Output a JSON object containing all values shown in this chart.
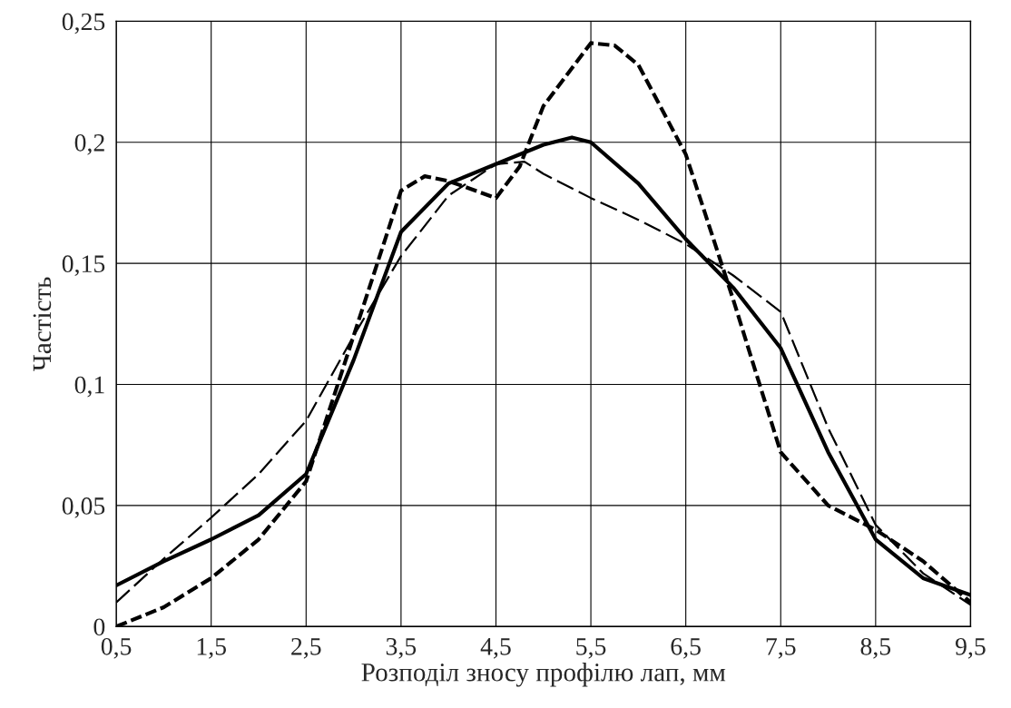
{
  "chart_data": {
    "type": "line",
    "xlabel": "Розподіл зносу профілю лап, мм",
    "ylabel": "Частість",
    "xlim": [
      0.5,
      9.5
    ],
    "ylim": [
      0,
      0.25
    ],
    "xticks": [
      {
        "value": 0.5,
        "label": "0,5"
      },
      {
        "value": 1.5,
        "label": "1,5"
      },
      {
        "value": 2.5,
        "label": "2,5"
      },
      {
        "value": 3.5,
        "label": "3,5"
      },
      {
        "value": 4.5,
        "label": "4,5"
      },
      {
        "value": 5.5,
        "label": "5,5"
      },
      {
        "value": 6.5,
        "label": "6,5"
      },
      {
        "value": 7.5,
        "label": "7,5"
      },
      {
        "value": 8.5,
        "label": "8,5"
      },
      {
        "value": 9.5,
        "label": "9,5"
      }
    ],
    "yticks": [
      0,
      {
        "value": 0.05,
        "label": "0,05"
      },
      {
        "value": 0.1,
        "label": "0,1"
      },
      {
        "value": 0.15,
        "label": "0,15"
      },
      {
        "value": 0.2,
        "label": "0,2"
      },
      {
        "value": 0.25,
        "label": "0,25"
      }
    ],
    "grid": true,
    "marker": "none",
    "series": [
      {
        "color": "#000000",
        "line_style": "solid",
        "x": [
          0.5,
          1.0,
          1.5,
          2.0,
          2.5,
          3.0,
          3.5,
          4.0,
          4.5,
          5.0,
          5.3,
          5.5,
          6.0,
          6.5,
          7.0,
          7.5,
          8.0,
          8.5,
          9.0,
          9.5
        ],
        "values": [
          0.017,
          0.027,
          0.036,
          0.046,
          0.063,
          0.11,
          0.163,
          0.183,
          0.191,
          0.199,
          0.202,
          0.2,
          0.183,
          0.16,
          0.14,
          0.115,
          0.072,
          0.036,
          0.02,
          0.013
        ]
      },
      {
        "color": "#000000",
        "line_style": "dashed",
        "x": [
          0.5,
          1.0,
          1.5,
          2.0,
          2.5,
          3.0,
          3.5,
          3.75,
          4.0,
          4.5,
          4.75,
          5.0,
          5.5,
          5.75,
          6.0,
          6.5,
          7.0,
          7.5,
          8.0,
          8.5,
          9.0,
          9.5
        ],
        "values": [
          0.0,
          0.008,
          0.02,
          0.036,
          0.06,
          0.12,
          0.18,
          0.186,
          0.184,
          0.177,
          0.19,
          0.215,
          0.241,
          0.24,
          0.232,
          0.195,
          0.135,
          0.072,
          0.05,
          0.04,
          0.027,
          0.01
        ]
      },
      {
        "color": "#000000",
        "line_style": "dashed",
        "x": [
          0.5,
          1.0,
          1.5,
          2.0,
          2.5,
          3.0,
          3.5,
          4.0,
          4.5,
          4.8,
          5.0,
          5.5,
          6.0,
          6.5,
          7.0,
          7.5,
          8.0,
          8.5,
          9.0,
          9.5
        ],
        "values": [
          0.01,
          0.028,
          0.045,
          0.063,
          0.085,
          0.12,
          0.153,
          0.178,
          0.191,
          0.192,
          0.187,
          0.177,
          0.168,
          0.158,
          0.145,
          0.13,
          0.082,
          0.042,
          0.022,
          0.009
        ]
      }
    ]
  }
}
